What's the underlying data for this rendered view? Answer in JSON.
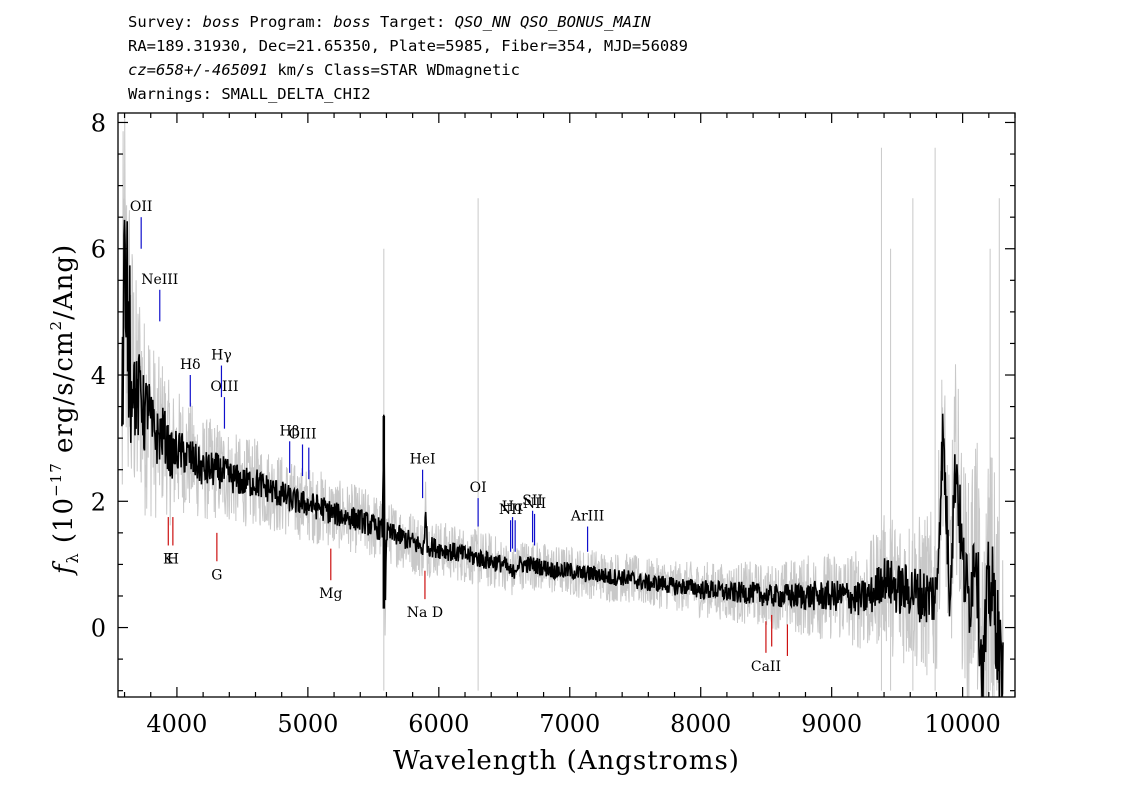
{
  "header": {
    "line1": {
      "survey_label": "Survey: ",
      "survey": "boss",
      "program_label": " Program: ",
      "program": "boss",
      "target_label": " Target: ",
      "target": "QSO_NN QSO_BONUS_MAIN"
    },
    "line2": "RA=189.31930, Dec=21.65350, Plate=5985, Fiber=354, MJD=56089",
    "line3": {
      "cz": "cz=658+/-465091",
      "rest": " km/s Class=STAR WDmagnetic"
    },
    "line4": "Warnings: SMALL_DELTA_CHI2"
  },
  "chart_data": {
    "type": "line",
    "xlabel": "Wavelength (Angstroms)",
    "ylabel": "f_λ (10^-17 erg/s/cm^2/Ang)",
    "xlim": [
      3550,
      10400
    ],
    "ylim": [
      -1.1,
      8.15
    ],
    "xticks": [
      4000,
      5000,
      6000,
      7000,
      8000,
      9000,
      10000
    ],
    "yticks": [
      0,
      2,
      4,
      6,
      8
    ],
    "series": [
      {
        "role": "noise",
        "color": "#c8c8c8",
        "x": [
          3580,
          3600,
          3620,
          3640,
          3660,
          3700,
          3750,
          3800,
          3850,
          3900,
          3950,
          4000,
          4100,
          4200,
          4300,
          4400,
          4500,
          4600,
          4700,
          4800,
          4900,
          5000,
          5100,
          5200,
          5300,
          5400,
          5500,
          5600,
          5700,
          5800,
          5900,
          6000,
          6100,
          6200,
          6300,
          6400,
          6500,
          6600,
          6700,
          6800,
          6900,
          7000,
          7100,
          7200,
          7300,
          7400,
          7500,
          7600,
          7700,
          7800,
          7900,
          8000,
          8100,
          8200,
          8300,
          8400,
          8500,
          8600,
          8700,
          8800,
          8900,
          9000,
          9100,
          9200,
          9300,
          9400,
          9500,
          9600,
          9700,
          9800,
          9900,
          10000,
          10100,
          10200,
          10300
        ],
        "spread": [
          3.6,
          3.4,
          3.0,
          2.6,
          2.2,
          1.9,
          1.7,
          1.5,
          1.3,
          1.2,
          1.1,
          1.0,
          0.9,
          0.85,
          0.8,
          0.75,
          0.7,
          0.7,
          0.65,
          0.65,
          0.6,
          0.6,
          0.6,
          0.55,
          0.55,
          0.55,
          0.55,
          0.5,
          0.5,
          0.5,
          0.5,
          0.45,
          0.45,
          0.45,
          0.45,
          0.45,
          0.4,
          0.4,
          0.4,
          0.4,
          0.4,
          0.4,
          0.4,
          0.4,
          0.4,
          0.4,
          0.4,
          0.4,
          0.4,
          0.4,
          0.4,
          0.45,
          0.45,
          0.45,
          0.5,
          0.5,
          0.5,
          0.55,
          0.6,
          0.65,
          0.7,
          0.7,
          0.75,
          0.8,
          0.9,
          1.0,
          1.2,
          1.2,
          1.3,
          1.4,
          1.6,
          1.8,
          2.0,
          2.3,
          2.6
        ]
      },
      {
        "role": "flux",
        "color": "#000000",
        "x": [
          3580,
          3590,
          3600,
          3610,
          3620,
          3630,
          3640,
          3650,
          3660,
          3680,
          3700,
          3720,
          3750,
          3780,
          3800,
          3850,
          3900,
          3950,
          4000,
          4100,
          4200,
          4300,
          4400,
          4500,
          4600,
          4700,
          4800,
          4900,
          5000,
          5100,
          5200,
          5300,
          5400,
          5500,
          5570,
          5580,
          5590,
          5600,
          5700,
          5800,
          5890,
          5900,
          5910,
          6000,
          6100,
          6200,
          6300,
          6400,
          6500,
          6560,
          6600,
          6700,
          6800,
          6900,
          7000,
          7100,
          7200,
          7300,
          7400,
          7500,
          7600,
          7700,
          7800,
          7900,
          8000,
          8100,
          8200,
          8300,
          8400,
          8500,
          8600,
          8700,
          8800,
          8900,
          9000,
          9100,
          9200,
          9300,
          9400,
          9500,
          9600,
          9700,
          9800,
          9850,
          9900,
          9950,
          10000,
          10050,
          10100,
          10150,
          10200,
          10250,
          10300
        ],
        "y": [
          3.3,
          4.5,
          6.7,
          3.5,
          5.8,
          3.8,
          5.2,
          3.4,
          4.2,
          3.7,
          3.5,
          3.9,
          3.3,
          3.6,
          3.2,
          3.0,
          3.1,
          2.7,
          2.8,
          2.7,
          2.5,
          2.5,
          2.4,
          2.3,
          2.3,
          2.2,
          2.1,
          2.0,
          1.95,
          1.9,
          1.8,
          1.75,
          1.7,
          1.6,
          1.55,
          3.35,
          0.3,
          1.5,
          1.45,
          1.35,
          1.25,
          2.0,
          1.3,
          1.25,
          1.2,
          1.15,
          1.1,
          1.05,
          1.0,
          0.85,
          1.0,
          1.0,
          0.95,
          0.9,
          0.9,
          0.85,
          0.85,
          0.8,
          0.8,
          0.75,
          0.7,
          0.7,
          0.65,
          0.65,
          0.6,
          0.6,
          0.55,
          0.55,
          0.55,
          0.5,
          0.5,
          0.5,
          0.5,
          0.5,
          0.5,
          0.5,
          0.45,
          0.5,
          0.8,
          0.6,
          0.6,
          0.5,
          0.5,
          3.1,
          0.6,
          2.7,
          1.0,
          0.4,
          1.4,
          -0.9,
          0.7,
          0.3,
          -1.0
        ]
      }
    ],
    "emission_lines": [
      {
        "label": "OII",
        "wave": 3727,
        "y0": 6.0,
        "y1": 6.5,
        "color": "#1010cc"
      },
      {
        "label": "NeIII",
        "wave": 3869,
        "y0": 4.85,
        "y1": 5.35,
        "color": "#1010cc"
      },
      {
        "label": "Hδ",
        "wave": 4102,
        "y0": 3.5,
        "y1": 4.0,
        "color": "#1010cc"
      },
      {
        "label": "Hγ",
        "wave": 4340,
        "y0": 3.65,
        "y1": 4.15,
        "color": "#1010cc"
      },
      {
        "label": "OIII",
        "wave": 4363,
        "y0": 3.15,
        "y1": 3.65,
        "color": "#1010cc"
      },
      {
        "label": "Hβ",
        "wave": 4861,
        "y0": 2.45,
        "y1": 2.95,
        "color": "#1010cc"
      },
      {
        "label": "OIII",
        "wave": 4959,
        "y0": 2.4,
        "y1": 2.9,
        "color": "#1010cc"
      },
      {
        "label": "",
        "wave": 5007,
        "y0": 2.35,
        "y1": 2.85,
        "color": "#1010cc"
      },
      {
        "label": "HeI",
        "wave": 5876,
        "y0": 2.05,
        "y1": 2.5,
        "color": "#1010cc"
      },
      {
        "label": "OI",
        "wave": 6300,
        "y0": 1.6,
        "y1": 2.05,
        "color": "#1010cc"
      },
      {
        "label": "NII",
        "wave": 6548,
        "y0": 1.2,
        "y1": 1.7,
        "color": "#1010cc"
      },
      {
        "label": "Hα",
        "wave": 6563,
        "y0": 1.25,
        "y1": 1.75,
        "color": "#1010cc"
      },
      {
        "label": "",
        "wave": 6583,
        "y0": 1.2,
        "y1": 1.7,
        "color": "#1010cc"
      },
      {
        "label": "SII",
        "wave": 6716,
        "y0": 1.35,
        "y1": 1.85,
        "color": "#1010cc"
      },
      {
        "label": "NII",
        "wave": 6731,
        "y0": 1.3,
        "y1": 1.8,
        "color": "#1010cc"
      },
      {
        "label": "ArIII",
        "wave": 7136,
        "y0": 1.2,
        "y1": 1.6,
        "color": "#1010cc"
      }
    ],
    "absorption_lines": [
      {
        "label": "K",
        "wave": 3934,
        "y0": 1.3,
        "y1": 1.75,
        "color": "#cc1010"
      },
      {
        "label": "H",
        "wave": 3969,
        "y0": 1.3,
        "y1": 1.75,
        "color": "#cc1010"
      },
      {
        "label": "G",
        "wave": 4305,
        "y0": 1.05,
        "y1": 1.5,
        "color": "#cc1010"
      },
      {
        "label": "Mg",
        "wave": 5175,
        "y0": 0.75,
        "y1": 1.25,
        "color": "#cc1010"
      },
      {
        "label": "Na D",
        "wave": 5894,
        "y0": 0.45,
        "y1": 0.9,
        "color": "#cc1010"
      },
      {
        "label": "CaII",
        "wave": 8498,
        "y0": -0.4,
        "y1": 0.1,
        "color": "#cc1010"
      },
      {
        "label": "",
        "wave": 8542,
        "y0": -0.3,
        "y1": 0.2,
        "color": "#cc1010"
      },
      {
        "label": "",
        "wave": 8662,
        "y0": -0.45,
        "y1": 0.05,
        "color": "#cc1010"
      }
    ]
  }
}
